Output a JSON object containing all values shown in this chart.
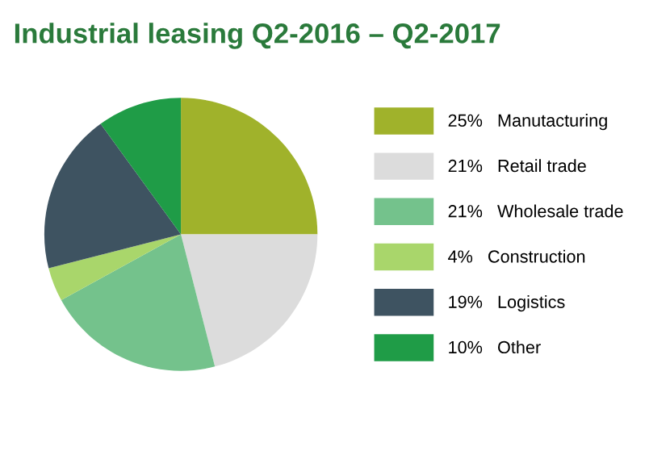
{
  "chart_data": {
    "type": "pie",
    "title": "Industrial leasing Q2-2016 – Q2-2017",
    "categories": [
      "Manutacturing",
      "Retail trade",
      "Wholesale trade",
      "Construction",
      "Logistics",
      "Other"
    ],
    "values": [
      25,
      21,
      21,
      4,
      19,
      10
    ],
    "value_labels": [
      "25%",
      "21%",
      "21%",
      "4%",
      "19%",
      "10%"
    ],
    "colors": [
      "#a0b22b",
      "#dcdcdc",
      "#74c28c",
      "#a9d66b",
      "#3e5361",
      "#1f9c47"
    ],
    "legend": "right"
  }
}
